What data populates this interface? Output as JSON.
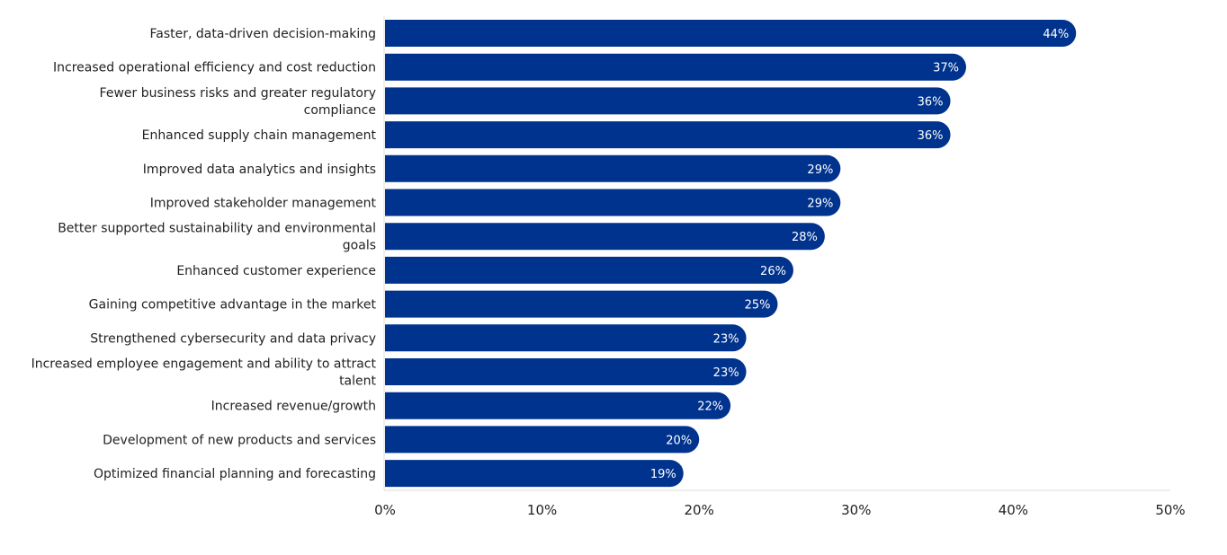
{
  "chart_data": {
    "type": "bar",
    "orientation": "horizontal",
    "categories": [
      "Faster, data-driven decision-making",
      "Increased operational efficiency and cost reduction",
      "Fewer business risks and greater regulatory compliance",
      "Enhanced supply chain management",
      "Improved data analytics and insights",
      "Improved stakeholder management",
      "Better supported sustainability and environmental goals",
      "Enhanced customer experience",
      "Gaining competitive advantage in the market",
      "Strengthened cybersecurity and data privacy",
      "Increased employee engagement and ability to attract talent",
      "Increased revenue/growth",
      "Development of new products and services",
      "Optimized financial planning and forecasting"
    ],
    "category_lines": [
      [
        "Faster, data-driven decision-making"
      ],
      [
        "Increased operational efficiency and cost reduction"
      ],
      [
        "Fewer business risks and greater regulatory",
        "compliance"
      ],
      [
        "Enhanced supply chain management"
      ],
      [
        "Improved data analytics and insights"
      ],
      [
        "Improved stakeholder management"
      ],
      [
        "Better supported sustainability and environmental",
        "goals"
      ],
      [
        "Enhanced customer experience"
      ],
      [
        "Gaining competitive advantage in the market"
      ],
      [
        "Strengthened cybersecurity and data privacy"
      ],
      [
        "Increased employee engagement and ability to attract",
        "talent"
      ],
      [
        "Increased revenue/growth"
      ],
      [
        "Development of new products and services"
      ],
      [
        "Optimized financial planning and forecasting"
      ]
    ],
    "values": [
      44,
      37,
      36,
      36,
      29,
      29,
      28,
      26,
      25,
      23,
      23,
      22,
      20,
      19
    ],
    "data_labels": [
      "44%",
      "37%",
      "36%",
      "36%",
      "29%",
      "29%",
      "28%",
      "26%",
      "25%",
      "23%",
      "23%",
      "22%",
      "20%",
      "19%"
    ],
    "xlim": [
      0,
      50
    ],
    "xticks": [
      "0%",
      "10%",
      "20%",
      "30%",
      "40%",
      "50%"
    ],
    "title": "",
    "xlabel": "",
    "ylabel": "",
    "grid": false,
    "legend": "none",
    "colors": {
      "bar": "#00338d",
      "axis": "#dddddd",
      "text": "#222222"
    }
  }
}
